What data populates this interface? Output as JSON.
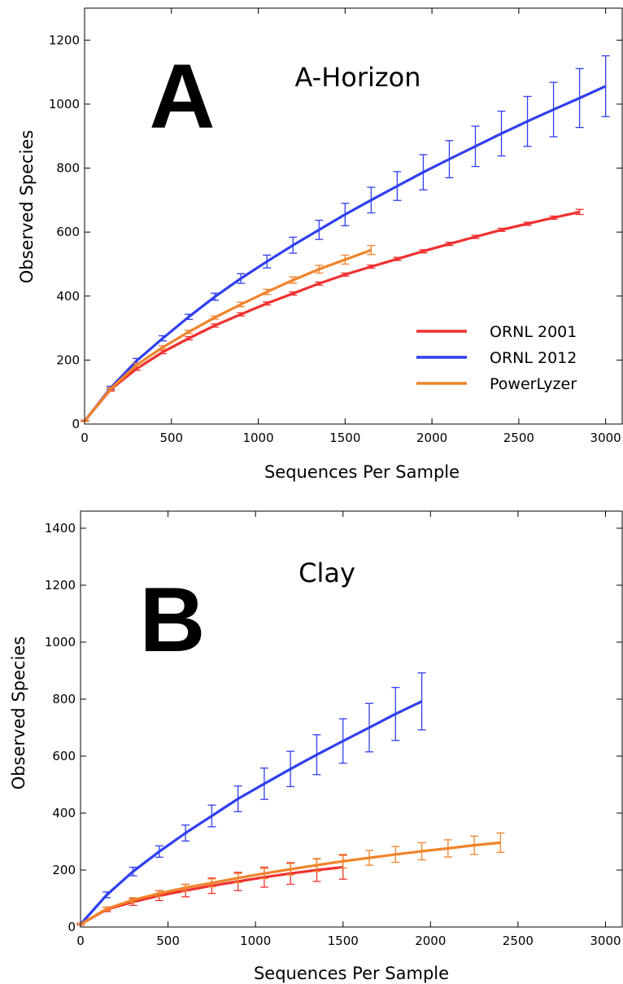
{
  "chart_data": [
    {
      "type": "line",
      "panel": "A",
      "title": "A-Horizon",
      "xlabel": "Sequences Per Sample",
      "ylabel": "Observed Species",
      "xlim": [
        0,
        3100
      ],
      "ylim": [
        0,
        1300
      ],
      "xticks": [
        0,
        500,
        1000,
        1500,
        2000,
        2500,
        3000
      ],
      "yticks": [
        0,
        200,
        400,
        600,
        800,
        1000,
        1200
      ],
      "legend": {
        "placement": "lower-right",
        "entries": [
          "ORNL 2001",
          "ORNL 2012",
          "PowerLyzer"
        ]
      },
      "series": [
        {
          "name": "ORNL 2001",
          "color": "#f03030",
          "x": [
            1,
            150,
            300,
            450,
            600,
            750,
            900,
            1050,
            1200,
            1350,
            1500,
            1650,
            1800,
            1950,
            2100,
            2250,
            2400,
            2550,
            2700,
            2850
          ],
          "y": [
            10,
            108,
            173,
            225,
            268,
            308,
            343,
            377,
            408,
            439,
            467,
            492,
            516,
            540,
            563,
            585,
            607,
            626,
            645,
            663
          ],
          "err": [
            2,
            5,
            5,
            5,
            5,
            5,
            5,
            5,
            5,
            5,
            5,
            5,
            5,
            5,
            5,
            5,
            5,
            5,
            5,
            8
          ]
        },
        {
          "name": "ORNL 2012",
          "color": "#2f3ff0",
          "x": [
            1,
            150,
            300,
            450,
            600,
            750,
            900,
            1050,
            1200,
            1350,
            1500,
            1650,
            1800,
            1950,
            2100,
            2250,
            2400,
            2550,
            2700,
            2850,
            3000
          ],
          "y": [
            10,
            113,
            198,
            268,
            335,
            398,
            455,
            508,
            559,
            607,
            655,
            700,
            744,
            787,
            828,
            868,
            908,
            946,
            983,
            1019,
            1056
          ],
          "err": [
            2,
            5,
            7,
            8,
            8,
            11,
            15,
            20,
            25,
            30,
            35,
            40,
            45,
            55,
            58,
            63,
            70,
            78,
            85,
            92,
            95
          ]
        },
        {
          "name": "PowerLyzer",
          "color": "#f0832a",
          "x": [
            1,
            150,
            300,
            450,
            600,
            750,
            900,
            1050,
            1200,
            1350,
            1500,
            1650
          ],
          "y": [
            10,
            110,
            185,
            240,
            288,
            333,
            374,
            413,
            450,
            484,
            514,
            544
          ],
          "err": [
            2,
            4,
            5,
            5,
            5,
            5,
            7,
            8,
            10,
            12,
            14,
            14
          ]
        }
      ]
    },
    {
      "type": "line",
      "panel": "B",
      "title": "Clay",
      "xlabel": "Sequences Per Sample",
      "ylabel": "Observed Species",
      "xlim": [
        0,
        3100
      ],
      "ylim": [
        0,
        1460
      ],
      "xticks": [
        0,
        500,
        1000,
        1500,
        2000,
        2500,
        3000
      ],
      "yticks": [
        0,
        200,
        400,
        600,
        800,
        1000,
        1200,
        1400
      ],
      "series": [
        {
          "name": "ORNL 2001",
          "color": "#f03030",
          "x": [
            1,
            150,
            300,
            450,
            600,
            750,
            900,
            1050,
            1200,
            1350,
            1500
          ],
          "y": [
            10,
            62,
            88,
            110,
            128,
            145,
            160,
            175,
            188,
            200,
            210
          ],
          "err": [
            3,
            8,
            12,
            17,
            22,
            27,
            32,
            35,
            38,
            40,
            42
          ]
        },
        {
          "name": "ORNL 2012",
          "color": "#2f3ff0",
          "x": [
            1,
            150,
            300,
            450,
            600,
            750,
            900,
            1050,
            1200,
            1350,
            1500,
            1650,
            1800,
            1950
          ],
          "y": [
            10,
            113,
            195,
            265,
            330,
            390,
            450,
            503,
            555,
            605,
            653,
            700,
            748,
            792
          ],
          "err": [
            3,
            10,
            15,
            20,
            28,
            38,
            45,
            55,
            62,
            70,
            78,
            85,
            93,
            100
          ]
        },
        {
          "name": "PowerLyzer",
          "color": "#f0832a",
          "x": [
            1,
            150,
            300,
            450,
            600,
            750,
            900,
            1050,
            1200,
            1350,
            1500,
            1650,
            1800,
            1950,
            2100,
            2250,
            2400
          ],
          "y": [
            10,
            64,
            95,
            118,
            138,
            155,
            172,
            188,
            203,
            217,
            231,
            243,
            255,
            266,
            276,
            287,
            296
          ],
          "err": [
            3,
            6,
            8,
            10,
            12,
            14,
            16,
            18,
            20,
            22,
            24,
            26,
            28,
            30,
            30,
            32,
            34
          ]
        }
      ]
    }
  ]
}
